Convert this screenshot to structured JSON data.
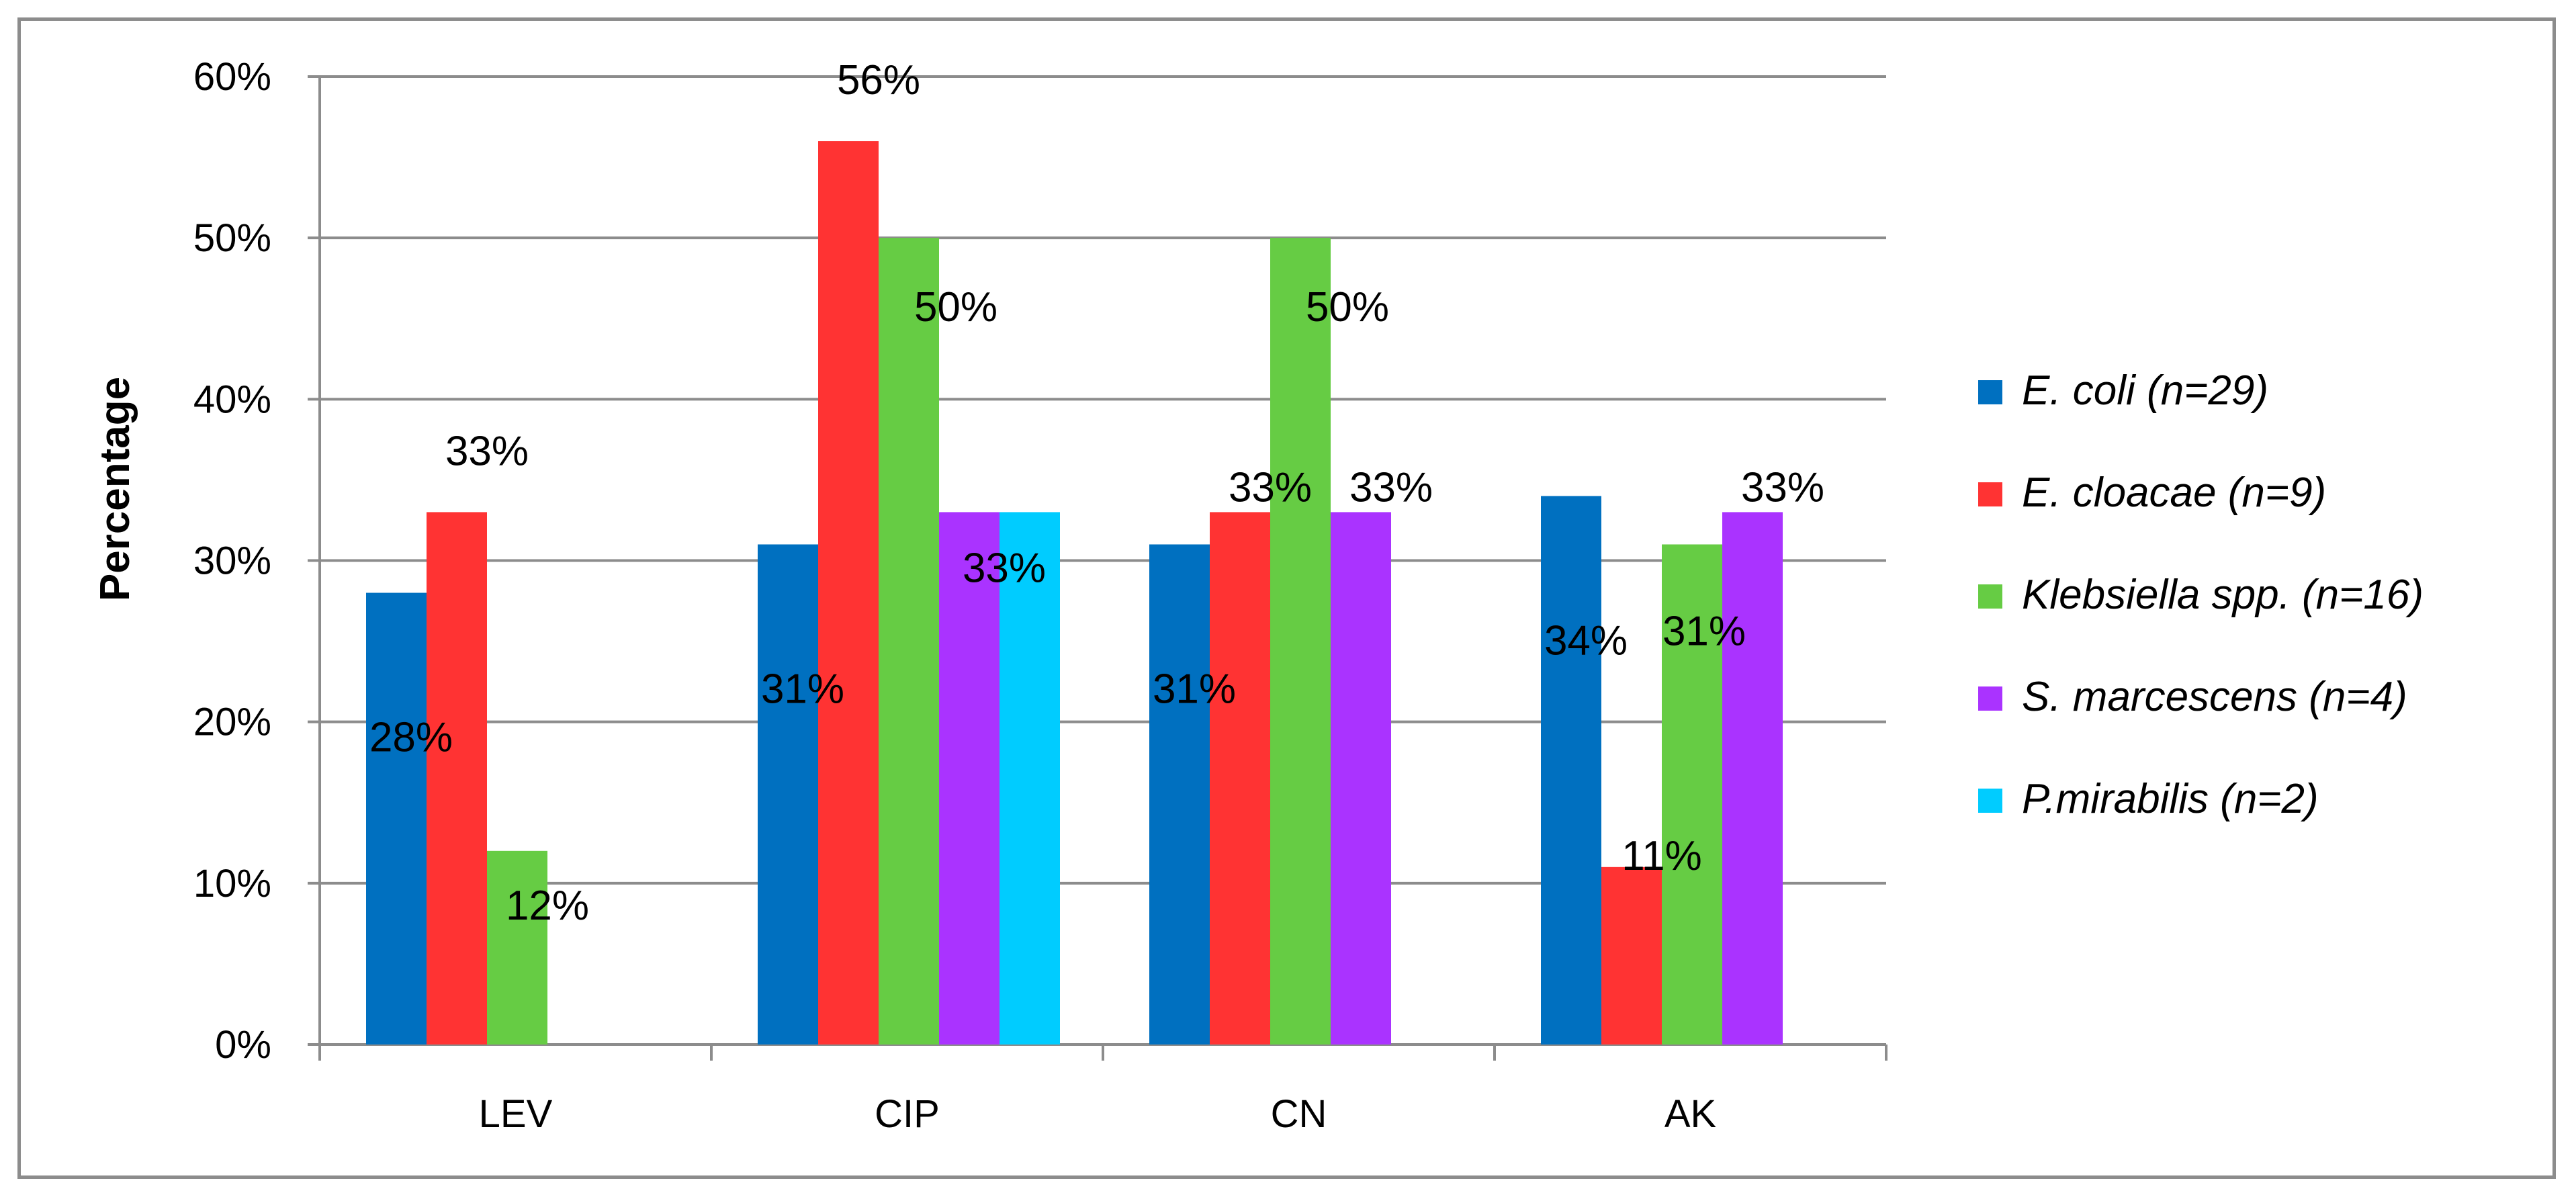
{
  "chart_data": {
    "type": "bar",
    "ylabel": "Percentage",
    "xlabel": "",
    "ylim": [
      0,
      60
    ],
    "yticks": [
      "0%",
      "10%",
      "20%",
      "30%",
      "40%",
      "50%",
      "60%"
    ],
    "categories": [
      "LEV",
      "CIP",
      "CN",
      "AK"
    ],
    "grid": "horizontal",
    "legend_position": "right",
    "series": [
      {
        "name": "E. coli (n=29)",
        "color": "#0070c0",
        "values": [
          28,
          31,
          31,
          34
        ],
        "labels": [
          "28%",
          "31%",
          "31%",
          "34%"
        ]
      },
      {
        "name": "E. cloacae (n=9)",
        "color": "#ff3333",
        "values": [
          33,
          56,
          33,
          11
        ],
        "labels": [
          "33%",
          "56%",
          "33%",
          "11%"
        ]
      },
      {
        "name": "Klebsiella spp. (n=16)",
        "color": "#66cc44",
        "values": [
          12,
          50,
          50,
          31
        ],
        "labels": [
          "12%",
          "50%",
          "50%",
          "31%"
        ]
      },
      {
        "name": "S. marcescens (n=4)",
        "color": "#aa33ff",
        "values": [
          null,
          33,
          33,
          33
        ],
        "labels": [
          null,
          null,
          "33%",
          "33%"
        ]
      },
      {
        "name": "P.mirabilis (n=2)",
        "color": "#00ccff",
        "values": [
          null,
          33,
          null,
          null
        ],
        "labels": [
          null,
          "33%",
          null,
          null
        ]
      }
    ]
  }
}
